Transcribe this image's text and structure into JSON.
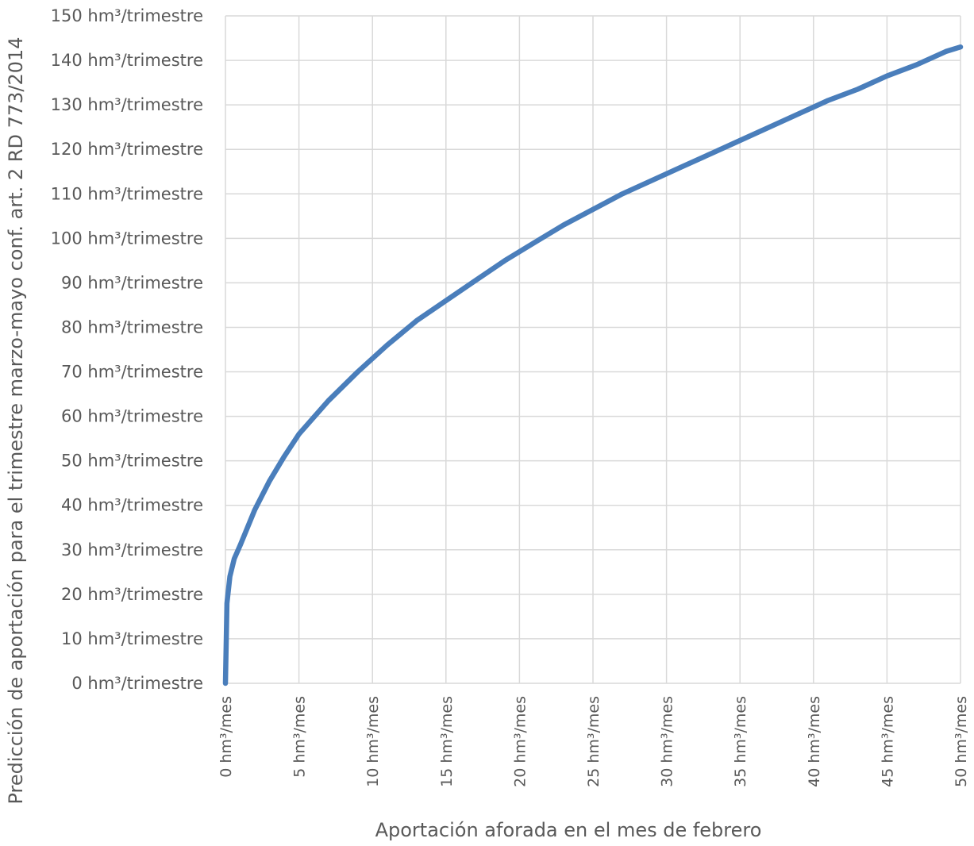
{
  "chart_data": {
    "type": "line",
    "title": "",
    "xlabel": "Aportación aforada en el mes de febrero",
    "ylabel": "Predicción de aportación para el trimestre marzo-mayo conf. art. 2 RD 773/2014",
    "x_unit": "hm³/mes",
    "y_unit": "hm³/trimestre",
    "xlim": [
      0,
      50
    ],
    "ylim": [
      0,
      150
    ],
    "x_ticks": [
      0,
      5,
      10,
      15,
      20,
      25,
      30,
      35,
      40,
      45,
      50
    ],
    "y_ticks": [
      0,
      10,
      20,
      30,
      40,
      50,
      60,
      70,
      80,
      90,
      100,
      110,
      120,
      130,
      140,
      150
    ],
    "x_tick_labels": [
      "0 hm³/mes",
      "5 hm³/mes",
      "10 hm³/mes",
      "15 hm³/mes",
      "20 hm³/mes",
      "25 hm³/mes",
      "30 hm³/mes",
      "35 hm³/mes",
      "40 hm³/mes",
      "45 hm³/mes",
      "50 hm³/mes"
    ],
    "y_tick_labels": [
      "0 hm³/trimestre",
      "10 hm³/trimestre",
      "20 hm³/trimestre",
      "30 hm³/trimestre",
      "40 hm³/trimestre",
      "50 hm³/trimestre",
      "60 hm³/trimestre",
      "70 hm³/trimestre",
      "80 hm³/trimestre",
      "90 hm³/trimestre",
      "100 hm³/trimestre",
      "110 hm³/trimestre",
      "120 hm³/trimestre",
      "130 hm³/trimestre",
      "140 hm³/trimestre",
      "150 hm³/trimestre"
    ],
    "grid": true,
    "legend": "none",
    "series": [
      {
        "color": "#4a7ebb",
        "x": [
          0,
          0.1,
          0.3,
          0.6,
          1,
          2,
          3,
          4,
          5,
          7,
          9,
          11,
          13,
          15,
          17,
          19,
          21,
          23,
          25,
          27,
          29,
          31,
          33,
          35,
          37,
          39,
          41,
          43,
          45,
          47,
          49,
          50
        ],
        "y": [
          0,
          18,
          24,
          28,
          31,
          39,
          45.5,
          51,
          56,
          63.5,
          70,
          76,
          81.5,
          86,
          90.5,
          95,
          99,
          103,
          106.5,
          110,
          113,
          116,
          119,
          122,
          125,
          128,
          131,
          133.5,
          136.5,
          139,
          142,
          143
        ]
      }
    ]
  }
}
